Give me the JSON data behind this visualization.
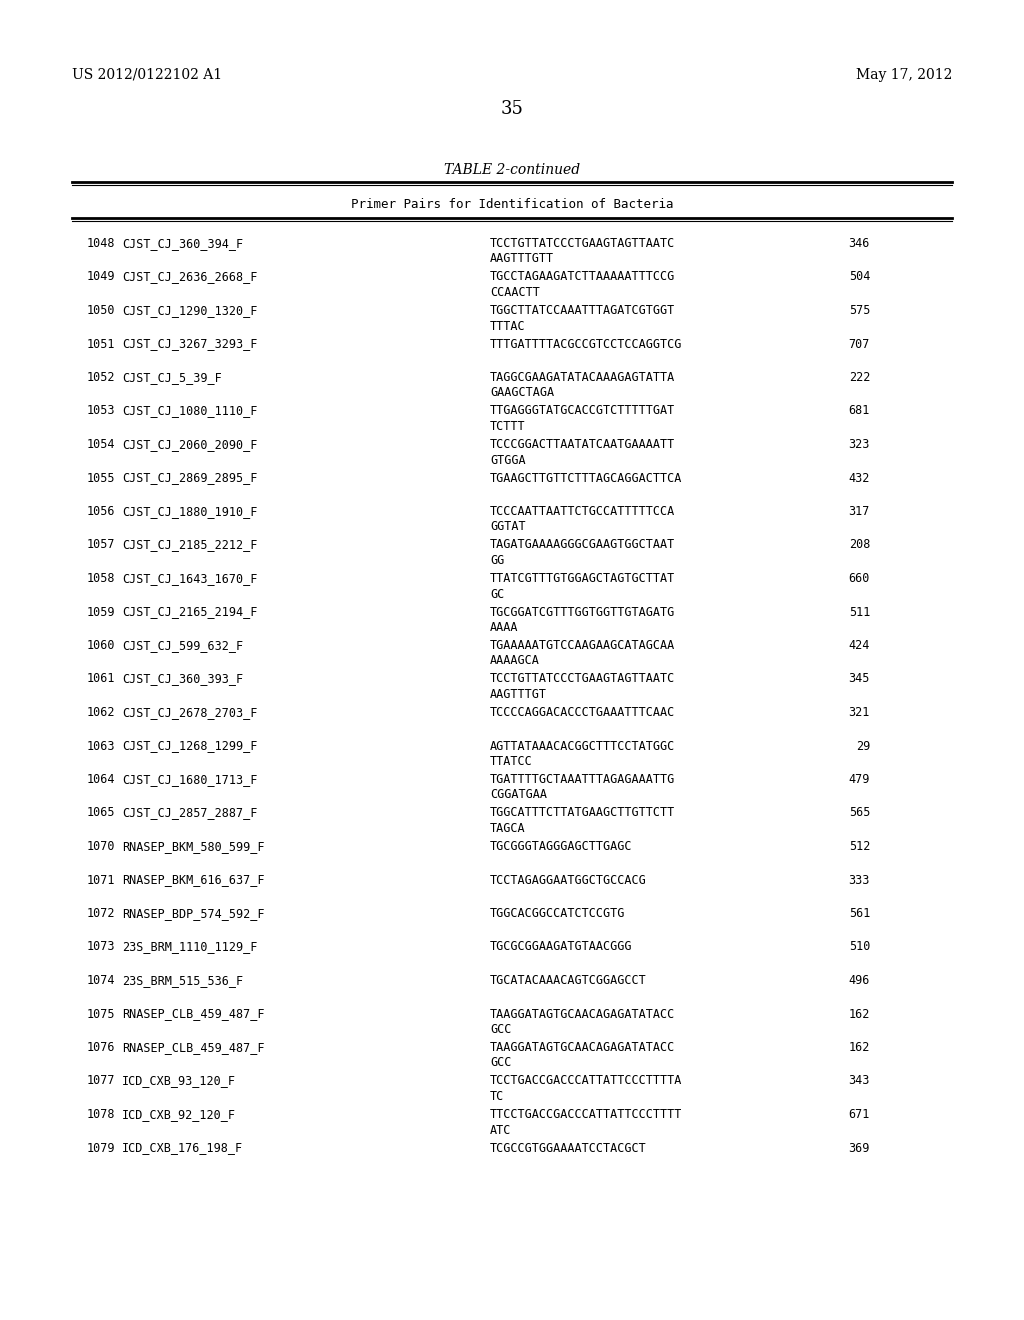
{
  "header_left": "US 2012/0122102 A1",
  "header_right": "May 17, 2012",
  "page_number": "35",
  "table_title": "TABLE 2-continued",
  "table_subtitle": "Primer Pairs for Identification of Bacteria",
  "background_color": "#ffffff",
  "text_color": "#000000",
  "rows": [
    [
      "1048",
      "CJST_CJ_360_394_F",
      "TCCTGTTATCCCTGAAGTAGTTAATC\nAAGTTTGTT",
      "346"
    ],
    [
      "1049",
      "CJST_CJ_2636_2668_F",
      "TGCCTAGAAGATCTTAAAAATTTCCG\nCCAACTT",
      "504"
    ],
    [
      "1050",
      "CJST_CJ_1290_1320_F",
      "TGGCTTATCCAAATTTAGATCGTGGT\nTTTAC",
      "575"
    ],
    [
      "1051",
      "CJST_CJ_3267_3293_F",
      "TTTGATTTTACGCCGTCCTCCAGGTCG",
      "707"
    ],
    [
      "1052",
      "CJST_CJ_5_39_F",
      "TAGGCGAAGATATACAAAGAGTATTA\nGAAGCTAGA",
      "222"
    ],
    [
      "1053",
      "CJST_CJ_1080_1110_F",
      "TTGAGGGTATGCACCGTCTTTTTGAT\nTCTTT",
      "681"
    ],
    [
      "1054",
      "CJST_CJ_2060_2090_F",
      "TCCCGGACTTAATATCAATGAAAATT\nGTGGA",
      "323"
    ],
    [
      "1055",
      "CJST_CJ_2869_2895_F",
      "TGAAGCTTGTTCTTTAGCAGGACTTCA",
      "432"
    ],
    [
      "1056",
      "CJST_CJ_1880_1910_F",
      "TCCCAATTAATTCTGCCATTTTTCCA\nGGTAT",
      "317"
    ],
    [
      "1057",
      "CJST_CJ_2185_2212_F",
      "TAGATGAAAAGGGCGAAGTGGCTAAT\nGG",
      "208"
    ],
    [
      "1058",
      "CJST_CJ_1643_1670_F",
      "TTATCGTTTGTGGAGCTAGTGCTTAT\nGC",
      "660"
    ],
    [
      "1059",
      "CJST_CJ_2165_2194_F",
      "TGCGGATCGTTTGGTGGTTGTAGATG\nAAAA",
      "511"
    ],
    [
      "1060",
      "CJST_CJ_599_632_F",
      "TGAAAAATGTCCAAGAAGCATAGCAA\nAAAAGCA",
      "424"
    ],
    [
      "1061",
      "CJST_CJ_360_393_F",
      "TCCTGTTATCCCTGAAGTAGTTAATC\nAAGTTTGT",
      "345"
    ],
    [
      "1062",
      "CJST_CJ_2678_2703_F",
      "TCCCCAGGACACCCTGAAATTTCAAC",
      "321"
    ],
    [
      "1063",
      "CJST_CJ_1268_1299_F",
      "AGTTATAAACACGGCTTTCCTATGGC\nTTATCC",
      "29"
    ],
    [
      "1064",
      "CJST_CJ_1680_1713_F",
      "TGATTTTGCTAAATTTAGAGAAATTG\nCGGATGAA",
      "479"
    ],
    [
      "1065",
      "CJST_CJ_2857_2887_F",
      "TGGCATTTCTTATGAAGCTTGTTCTT\nTAGCA",
      "565"
    ],
    [
      "1070",
      "RNASEP_BKM_580_599_F",
      "TGCGGGTAGGGAGCTTGAGC",
      "512"
    ],
    [
      "1071",
      "RNASEP_BKM_616_637_F",
      "TCCTAGAGGAATGGCTGCCACG",
      "333"
    ],
    [
      "1072",
      "RNASEP_BDP_574_592_F",
      "TGGCACGGCCATCTCCGTG",
      "561"
    ],
    [
      "1073",
      "23S_BRM_1110_1129_F",
      "TGCGCGGAAGATGTAACGGG",
      "510"
    ],
    [
      "1074",
      "23S_BRM_515_536_F",
      "TGCATACAAACAGTCGGAGCCT",
      "496"
    ],
    [
      "1075",
      "RNASEP_CLB_459_487_F",
      "TAAGGATAGTGCAACAGAGATATACC\nGCC",
      "162"
    ],
    [
      "1076",
      "RNASEP_CLB_459_487_F",
      "TAAGGATAGTGCAACAGAGATATACC\nGCC",
      "162"
    ],
    [
      "1077",
      "ICD_CXB_93_120_F",
      "TCCTGACCGACCCATTATTCCCTTTTA\nTC",
      "343"
    ],
    [
      "1078",
      "ICD_CXB_92_120_F",
      "TTCCTGACCGACCCATTATTCCCTTTT\nATC",
      "671"
    ],
    [
      "1079",
      "ICD_CXB_176_198_F",
      "TCGCCGTGGAAAATCCTACGCT",
      "369"
    ]
  ]
}
